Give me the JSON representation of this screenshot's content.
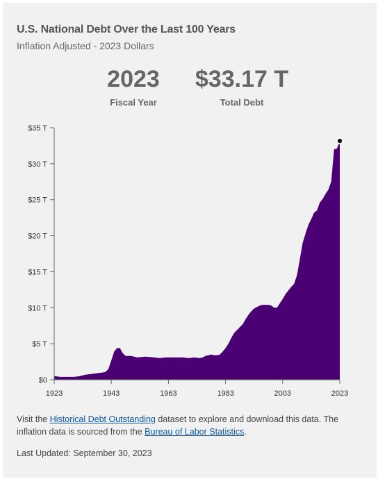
{
  "header": {
    "title": "U.S. National Debt Over the Last 100 Years",
    "subtitle": "Inflation Adjusted - 2023 Dollars"
  },
  "kpis": {
    "year_value": "2023",
    "year_label": "Fiscal Year",
    "debt_value": "$33.17 T",
    "debt_label": "Total Debt"
  },
  "footer": {
    "text_1": "Visit the ",
    "link_1": "Historical Debt Outstanding",
    "text_2": " dataset to explore and download this data. The inflation data is sourced from the ",
    "link_2": "Bureau of Labor Statistics",
    "text_3": ".",
    "updated": "Last Updated: September 30, 2023"
  },
  "colors": {
    "area": "#4a0072",
    "background": "#f1f1f1"
  },
  "chart_data": {
    "type": "area",
    "title": "U.S. National Debt Over the Last 100 Years",
    "subtitle": "Inflation Adjusted - 2023 Dollars",
    "xlabel": "",
    "ylabel": "",
    "xlim": [
      1923,
      2023
    ],
    "ylim": [
      0,
      35
    ],
    "x_ticks": [
      1923,
      1943,
      1963,
      1983,
      2003,
      2023
    ],
    "y_ticks": [
      0,
      5,
      10,
      15,
      20,
      25,
      30,
      35
    ],
    "y_tick_labels": [
      "$0",
      "$5 T",
      "$10 T",
      "$15 T",
      "$20 T",
      "$25 T",
      "$30 T",
      "$35 T"
    ],
    "grid": false,
    "legend": "none",
    "highlight_point": {
      "x": 2023,
      "y": 33.17
    },
    "series": [
      {
        "x": [
          1923,
          1925,
          1927,
          1930,
          1932,
          1934,
          1936,
          1938,
          1940,
          1941,
          1942,
          1943,
          1944,
          1945,
          1946,
          1947,
          1948,
          1950,
          1952,
          1955,
          1958,
          1960,
          1962,
          1965,
          1968,
          1970,
          1972,
          1974,
          1975,
          1976,
          1977,
          1978,
          1979,
          1980,
          1981,
          1982,
          1983,
          1984,
          1985,
          1986,
          1987,
          1988,
          1989,
          1990,
          1991,
          1992,
          1993,
          1994,
          1995,
          1996,
          1997,
          1998,
          1999,
          2000,
          2001,
          2002,
          2003,
          2004,
          2005,
          2006,
          2007,
          2008,
          2009,
          2010,
          2011,
          2012,
          2013,
          2014,
          2015,
          2016,
          2017,
          2018,
          2019,
          2020,
          2021,
          2022,
          2023
        ],
        "values": [
          0.5,
          0.4,
          0.4,
          0.4,
          0.5,
          0.7,
          0.8,
          0.9,
          1.0,
          1.1,
          1.5,
          2.7,
          3.9,
          4.4,
          4.4,
          3.7,
          3.3,
          3.3,
          3.1,
          3.2,
          3.1,
          3.0,
          3.1,
          3.1,
          3.1,
          3.0,
          3.1,
          3.0,
          3.1,
          3.3,
          3.4,
          3.5,
          3.4,
          3.4,
          3.5,
          3.9,
          4.4,
          5.0,
          5.8,
          6.5,
          6.9,
          7.3,
          7.7,
          8.4,
          9.0,
          9.5,
          9.9,
          10.1,
          10.3,
          10.4,
          10.4,
          10.4,
          10.3,
          10.0,
          10.0,
          10.6,
          11.2,
          11.9,
          12.4,
          12.9,
          13.3,
          14.5,
          16.7,
          19.0,
          20.3,
          21.5,
          22.3,
          23.2,
          23.5,
          24.6,
          25.1,
          25.8,
          26.4,
          27.5,
          32.0,
          32.1,
          33.17
        ]
      }
    ]
  }
}
